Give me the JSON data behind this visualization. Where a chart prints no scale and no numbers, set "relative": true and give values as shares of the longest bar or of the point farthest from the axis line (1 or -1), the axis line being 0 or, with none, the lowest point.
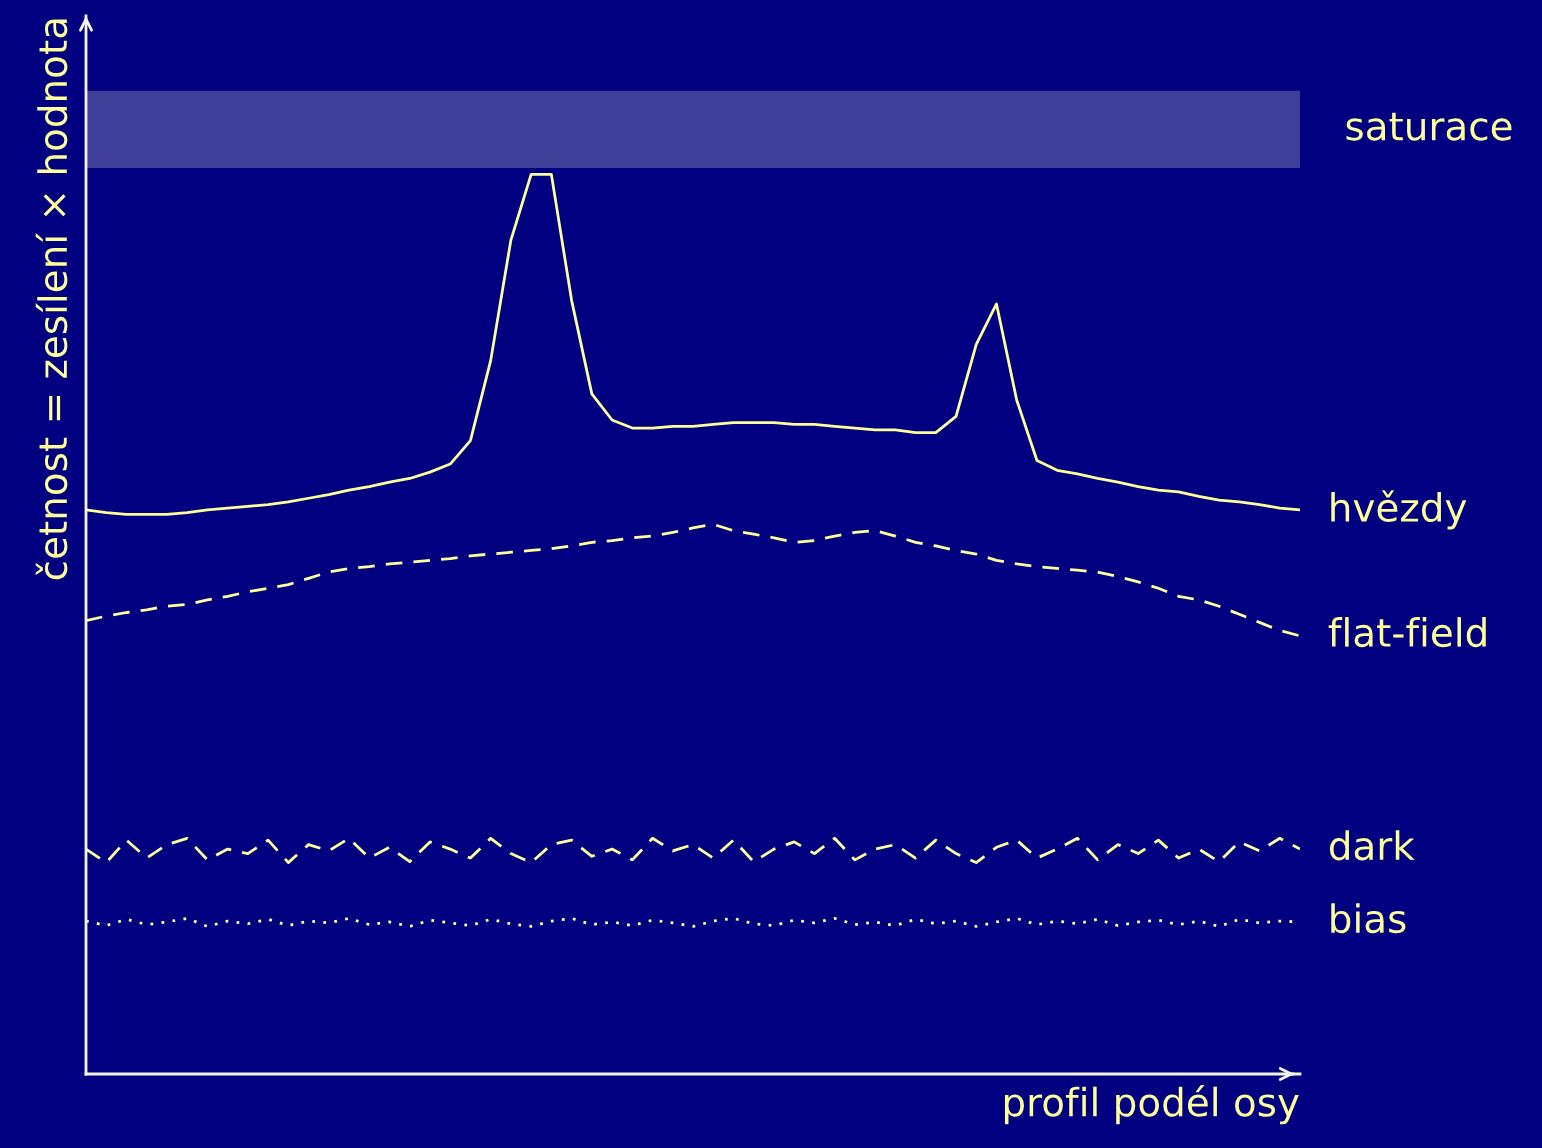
{
  "chart_data": {
    "type": "line",
    "relative": true,
    "xlabel": "profil podél osy",
    "ylabel": "četnost = zesílení × hodnota",
    "legend": false,
    "categories": [
      null,
      null,
      null,
      null,
      null,
      null,
      null,
      null,
      null,
      null,
      null,
      null,
      null,
      null,
      null,
      null,
      null,
      null,
      null,
      null,
      null,
      null,
      null,
      null,
      null,
      null,
      null,
      null,
      null,
      null,
      null,
      null,
      null,
      null,
      null,
      null,
      null,
      null,
      null,
      null,
      null,
      null,
      null,
      null,
      null,
      null,
      null,
      null,
      null,
      null,
      null,
      null,
      null,
      null,
      null,
      null,
      null,
      null,
      null,
      null,
      null
    ],
    "series": [
      {
        "name": "hvězdy",
        "color": "#ffff99",
        "line_style": "solid",
        "values": [
          0.627,
          0.624,
          0.622,
          0.622,
          0.622,
          0.624,
          0.627,
          0.629,
          0.631,
          0.633,
          0.636,
          0.64,
          0.644,
          0.649,
          0.653,
          0.658,
          0.662,
          0.669,
          0.678,
          0.704,
          0.793,
          0.927,
          1,
          1,
          0.86,
          0.756,
          0.727,
          0.718,
          0.718,
          0.72,
          0.72,
          0.722,
          0.724,
          0.724,
          0.724,
          0.722,
          0.722,
          0.72,
          0.718,
          0.716,
          0.716,
          0.713,
          0.713,
          0.731,
          0.811,
          0.856,
          0.749,
          0.682,
          0.671,
          0.667,
          0.662,
          0.658,
          0.653,
          0.649,
          0.647,
          0.642,
          0.638,
          0.636,
          0.633,
          0.629,
          0.627
        ]
      },
      {
        "name": "flat-field",
        "color": "#ffff99",
        "line_style": "dashed",
        "values": [
          0.504,
          0.509,
          0.513,
          0.516,
          0.52,
          0.522,
          0.527,
          0.531,
          0.536,
          0.54,
          0.544,
          0.551,
          0.558,
          0.562,
          0.564,
          0.567,
          0.569,
          0.571,
          0.573,
          0.576,
          0.578,
          0.58,
          0.582,
          0.584,
          0.587,
          0.591,
          0.593,
          0.596,
          0.598,
          0.602,
          0.607,
          0.611,
          0.604,
          0.6,
          0.596,
          0.591,
          0.593,
          0.598,
          0.602,
          0.604,
          0.598,
          0.591,
          0.587,
          0.582,
          0.578,
          0.571,
          0.567,
          0.564,
          0.562,
          0.56,
          0.558,
          0.553,
          0.547,
          0.54,
          0.531,
          0.527,
          0.52,
          0.511,
          0.502,
          0.493,
          0.487
        ]
      },
      {
        "name": "dark",
        "color": "#ffff99",
        "line_style": "dashed",
        "values": [
          0.25,
          0.235,
          0.26,
          0.24,
          0.255,
          0.262,
          0.238,
          0.25,
          0.245,
          0.26,
          0.235,
          0.255,
          0.248,
          0.262,
          0.24,
          0.252,
          0.236,
          0.258,
          0.25,
          0.24,
          0.262,
          0.245,
          0.235,
          0.255,
          0.26,
          0.242,
          0.25,
          0.238,
          0.262,
          0.248,
          0.255,
          0.24,
          0.26,
          0.236,
          0.25,
          0.258,
          0.245,
          0.262,
          0.238,
          0.25,
          0.255,
          0.24,
          0.26,
          0.245,
          0.235,
          0.252,
          0.26,
          0.24,
          0.25,
          0.262,
          0.238,
          0.255,
          0.245,
          0.26,
          0.24,
          0.25,
          0.236,
          0.258,
          0.248,
          0.262,
          0.25
        ]
      },
      {
        "name": "bias",
        "color": "#ffff99",
        "line_style": "dotted",
        "values": [
          0.17,
          0.165,
          0.172,
          0.166,
          0.169,
          0.173,
          0.164,
          0.17,
          0.167,
          0.172,
          0.165,
          0.17,
          0.168,
          0.173,
          0.166,
          0.169,
          0.164,
          0.171,
          0.168,
          0.165,
          0.172,
          0.167,
          0.164,
          0.17,
          0.173,
          0.166,
          0.169,
          0.165,
          0.171,
          0.168,
          0.164,
          0.17,
          0.173,
          0.167,
          0.165,
          0.171,
          0.168,
          0.173,
          0.166,
          0.169,
          0.165,
          0.172,
          0.167,
          0.17,
          0.164,
          0.169,
          0.173,
          0.166,
          0.17,
          0.167,
          0.172,
          0.165,
          0.169,
          0.171,
          0.166,
          0.17,
          0.164,
          0.172,
          0.168,
          0.17,
          0.169
        ]
      }
    ],
    "bands": [
      {
        "axis": "y",
        "from": 1.007,
        "to": 1.093,
        "label": "saturace",
        "color": "#40409a"
      }
    ]
  }
}
